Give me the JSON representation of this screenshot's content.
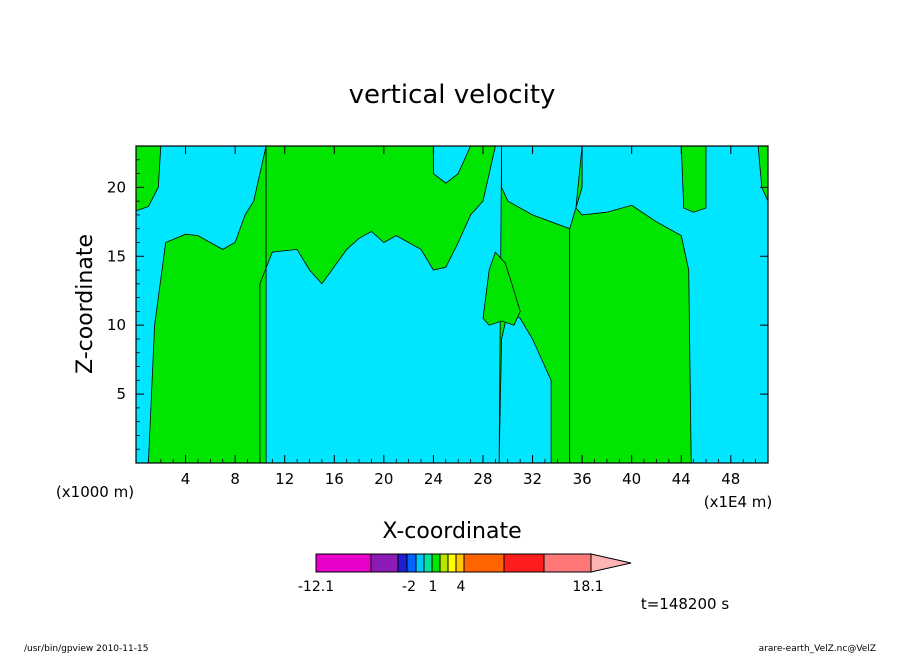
{
  "chart_data": {
    "type": "contour",
    "title": "vertical velocity",
    "xlabel": "X-coordinate",
    "ylabel": "Z-coordinate",
    "x_unit_left": "(x1000 m)",
    "x_unit_right": "(x1E4 m)",
    "xlim": [
      0,
      51
    ],
    "ylim": [
      0,
      23
    ],
    "xticks": [
      "4",
      "8",
      "12",
      "16",
      "20",
      "24",
      "28",
      "32",
      "36",
      "40",
      "44",
      "48"
    ],
    "xtick_values": [
      4,
      8,
      12,
      16,
      20,
      24,
      28,
      32,
      36,
      40,
      44,
      48
    ],
    "yticks": [
      "5",
      "10",
      "15",
      "20"
    ],
    "ytick_values": [
      5,
      10,
      15,
      20
    ],
    "background_color": "#00e6ff",
    "regions": [
      {
        "name": "positive-1",
        "color": "#00e600",
        "polygon": [
          [
            0,
            23
          ],
          [
            2,
            23
          ],
          [
            1.8,
            20
          ],
          [
            1,
            18.6
          ],
          [
            0,
            18.3
          ]
        ]
      },
      {
        "name": "positive-2",
        "color": "#00e600",
        "polygon": [
          [
            1,
            0
          ],
          [
            1.5,
            10
          ],
          [
            2.4,
            16
          ],
          [
            4,
            16.6
          ],
          [
            5,
            16.5
          ],
          [
            7,
            15.5
          ],
          [
            8,
            16
          ],
          [
            8.8,
            18
          ],
          [
            9.5,
            19
          ],
          [
            10.5,
            23
          ],
          [
            10.5,
            0
          ]
        ]
      },
      {
        "name": "positive-3",
        "color": "#00e600",
        "polygon": [
          [
            10.5,
            0
          ],
          [
            10.5,
            23
          ],
          [
            24,
            23
          ],
          [
            24,
            21
          ],
          [
            25,
            20.3
          ],
          [
            26,
            21
          ],
          [
            27,
            23
          ],
          [
            29,
            23
          ],
          [
            28,
            19
          ],
          [
            27,
            18
          ],
          [
            26,
            16
          ],
          [
            25,
            14.2
          ],
          [
            24,
            14
          ],
          [
            23,
            15.5
          ],
          [
            21,
            16.5
          ],
          [
            20,
            16
          ],
          [
            19,
            16.8
          ],
          [
            18,
            16.3
          ],
          [
            17,
            15.5
          ],
          [
            15,
            13
          ],
          [
            14,
            14
          ],
          [
            13,
            15.5
          ],
          [
            11,
            15.3
          ],
          [
            10,
            13
          ],
          [
            10,
            0
          ]
        ]
      },
      {
        "name": "positive-4",
        "color": "#00e600",
        "polygon": [
          [
            29.5,
            23
          ],
          [
            29.5,
            20
          ],
          [
            30,
            19
          ],
          [
            32,
            18
          ],
          [
            35,
            17
          ],
          [
            35,
            0
          ],
          [
            33.5,
            0
          ],
          [
            33.5,
            6
          ],
          [
            32,
            9
          ],
          [
            31,
            10.5
          ],
          [
            30,
            11
          ],
          [
            29.5,
            9
          ],
          [
            29.3,
            0
          ]
        ]
      },
      {
        "name": "positive-5",
        "color": "#00e600",
        "polygon": [
          [
            36,
            23
          ],
          [
            35.5,
            18.5
          ],
          [
            36,
            18
          ],
          [
            38,
            18.2
          ],
          [
            40,
            18.7
          ],
          [
            42,
            17.5
          ],
          [
            44,
            16.5
          ],
          [
            44.6,
            14
          ],
          [
            44.8,
            0
          ],
          [
            35,
            0
          ],
          [
            35,
            17
          ],
          [
            36,
            20
          ]
        ]
      },
      {
        "name": "positive-6",
        "color": "#00e600",
        "polygon": [
          [
            44,
            23
          ],
          [
            44.2,
            18.5
          ],
          [
            45,
            18.2
          ],
          [
            46,
            18.5
          ],
          [
            46,
            23
          ]
        ]
      },
      {
        "name": "positive-7",
        "color": "#00e600",
        "polygon": [
          [
            50.2,
            23
          ],
          [
            50.5,
            20
          ],
          [
            51,
            19
          ],
          [
            51,
            23
          ]
        ]
      },
      {
        "name": "positive-8",
        "color": "#00e600",
        "polygon": [
          [
            28,
            10.5
          ],
          [
            28.5,
            14
          ],
          [
            29,
            15.3
          ],
          [
            29.8,
            14.5
          ],
          [
            30.5,
            12.5
          ],
          [
            31,
            11
          ],
          [
            30.5,
            10
          ],
          [
            29.5,
            10.3
          ],
          [
            28.5,
            10
          ]
        ]
      }
    ],
    "colorbar": {
      "labels": [
        "-12.1",
        "-2",
        "1",
        "4",
        "18.1"
      ],
      "colors": [
        "#e600c8",
        "#8c1ab4",
        "#1e1ed2",
        "#0064ff",
        "#00c8ff",
        "#00e6a0",
        "#00e600",
        "#b4e600",
        "#ffff00",
        "#ffc800",
        "#ff6400",
        "#ff1e1e",
        "#ff7878",
        "#ffb4b4"
      ]
    },
    "time_label": "t=148200 s",
    "footer_left": "/usr/bin/gpview   2010-11-15",
    "footer_right": "arare-earth_VelZ.nc@VelZ"
  }
}
